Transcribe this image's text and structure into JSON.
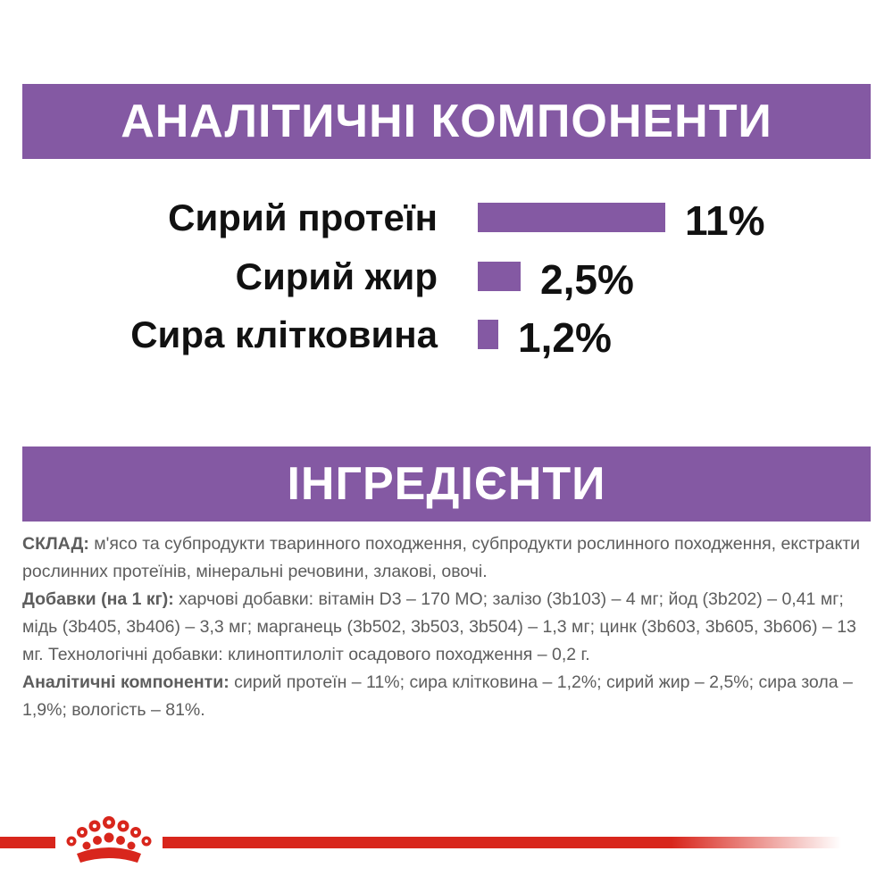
{
  "analytic_section": {
    "title": "АНАЛІТИЧНІ КОМПОНЕНТИ",
    "items": [
      {
        "label": "Сирий протеїн",
        "value_text": "11%",
        "value": 11
      },
      {
        "label": "Сирий жир",
        "value_text": "2,5%",
        "value": 2.5
      },
      {
        "label": "Сира клітковина",
        "value_text": "1,2%",
        "value": 1.2
      }
    ]
  },
  "ingredients_section": {
    "title": "ІНГРЕДІЄНТИ",
    "composition_lead": "СКЛАД:",
    "composition_text": " м'ясо та субпродукти тваринного походження, субпродукти рослинного походження, екстракти рослинних протеїнів, мінеральні речовини, злакові, овочі.",
    "additives_lead": "Добавки (на 1 кг):",
    "additives_text": " харчові добавки: вітамін D3 – 170 МО; залізо (3b103) – 4 мг; йод (3b202) – 0,41 мг; мідь (3b405, 3b406) – 3,3 мг; марганець (3b502, 3b503, 3b504) – 1,3 мг; цинк (3b603, 3b605, 3b606) – 13 мг. Технологічні добавки: клиноптилоліт осадового походження – 0,2 г.",
    "analytic_lead": "Аналітичні компоненти:",
    "analytic_text": " сирий протеїн – 11%; сира клітковина – 1,2%; сирий жир – 2,5%; сира зола – 1,9%; вологість – 81%."
  },
  "colors": {
    "accent_purple": "#8459a3",
    "brand_red": "#d8261c"
  },
  "logo": {
    "icon": "crown-logo-icon"
  }
}
